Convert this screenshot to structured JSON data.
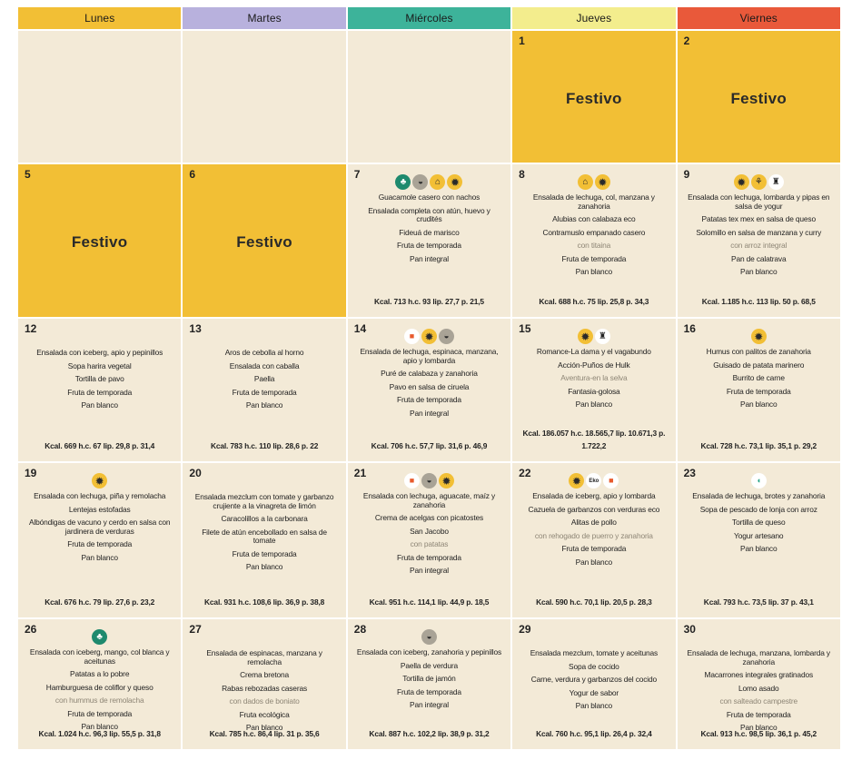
{
  "headers": [
    {
      "label": "Lunes",
      "color": "#f2bf35"
    },
    {
      "label": "Martes",
      "color": "#b8b1dd"
    },
    {
      "label": "Miércoles",
      "color": "#3db39a"
    },
    {
      "label": "Jueves",
      "color": "#f3ed8d"
    },
    {
      "label": "Viernes",
      "color": "#e9593a"
    }
  ],
  "holiday_label": "Festivo",
  "weeks": [
    [
      {
        "empty": true
      },
      {
        "empty": true
      },
      {
        "empty": true
      },
      {
        "day": "1",
        "holiday": true
      },
      {
        "day": "2",
        "holiday": true
      }
    ],
    [
      {
        "day": "5",
        "holiday": true
      },
      {
        "day": "6",
        "holiday": true
      },
      {
        "day": "7",
        "icons": [
          "tree",
          "bowl",
          "house",
          "sun"
        ],
        "menu": [
          {
            "text": "Guacamole casero con nachos"
          },
          {
            "text": "Ensalada completa con atún, huevo y crudités"
          },
          {
            "text": "Fideuá de marisco"
          },
          {
            "text": "Fruta de temporada"
          },
          {
            "text": "Pan integral"
          }
        ],
        "kcal": "Kcal. 713 h.c. 93 lip. 27,7 p. 21,5"
      },
      {
        "day": "8",
        "icons": [
          "house",
          "sun"
        ],
        "menu": [
          {
            "text": "Ensalada de lechuga, col, manzana y zanahoria"
          },
          {
            "text": "Alubias con calabaza eco"
          },
          {
            "text": "Contramuslo empanado casero"
          },
          {
            "text": "con titaina",
            "alt": true
          },
          {
            "text": "Fruta de temporada"
          },
          {
            "text": "Pan blanco"
          }
        ],
        "kcal": "Kcal. 688 h.c. 75 lip. 25,8 p. 34,3"
      },
      {
        "day": "9",
        "icons": [
          "sun",
          "sprout",
          "chef"
        ],
        "menu": [
          {
            "text": "Ensalada con lechuga, lombarda y pipas en salsa de yogur"
          },
          {
            "text": "Patatas tex mex en salsa de queso"
          },
          {
            "text": "Solomillo en salsa de manzana y curry"
          },
          {
            "text": "con arroz integral",
            "alt": true
          },
          {
            "text": "Pan de calatrava"
          },
          {
            "text": "Pan blanco"
          }
        ],
        "kcal": "Kcal. 1.185 h.c. 113 lip. 50 p. 68,5"
      }
    ],
    [
      {
        "day": "12",
        "icons": [],
        "menu": [
          {
            "text": "Ensalada con iceberg, apio y pepinillos"
          },
          {
            "text": "Sopa harira vegetal"
          },
          {
            "text": "Tortilla de pavo"
          },
          {
            "text": "Fruta de temporada"
          },
          {
            "text": "Pan blanco"
          }
        ],
        "kcal": "Kcal. 669 h.c. 67 lip. 29,8 p. 31,4"
      },
      {
        "day": "13",
        "icons": [],
        "menu": [
          {
            "text": "Aros de cebolla al horno"
          },
          {
            "text": "Ensalada con caballa"
          },
          {
            "text": "Paella"
          },
          {
            "text": "Fruta de temporada"
          },
          {
            "text": "Pan blanco"
          }
        ],
        "kcal": "Kcal. 783 h.c. 110 lip. 28,6 p. 22"
      },
      {
        "day": "14",
        "icons": [
          "flag",
          "sun",
          "bowl"
        ],
        "menu": [
          {
            "text": "Ensalada de lechuga, espinaca, manzana, apio y lombarda"
          },
          {
            "text": "Puré de calabaza y zanahoria"
          },
          {
            "text": "Pavo en salsa de ciruela"
          },
          {
            "text": "Fruta de temporada"
          },
          {
            "text": "Pan integral"
          }
        ],
        "kcal": "Kcal. 706 h.c. 57,7 lip. 31,6 p. 46,9"
      },
      {
        "day": "15",
        "icons": [
          "sun",
          "chef"
        ],
        "menu": [
          {
            "text": "Romance-La dama y el vagabundo"
          },
          {
            "text": "Acción-Puños de Hulk"
          },
          {
            "text": "Aventura-en la selva",
            "alt": true
          },
          {
            "text": "Fantasia-golosa"
          },
          {
            "text": "Pan blanco"
          }
        ],
        "kcal": "Kcal. 186.057 h.c. 18.565,7 lip. 10.671,3 p. 1.722,2"
      },
      {
        "day": "16",
        "icons": [
          "sun"
        ],
        "menu": [
          {
            "text": "Humus con palitos de zanahoria"
          },
          {
            "text": "Guisado de patata marinero"
          },
          {
            "text": "Burrito de carne"
          },
          {
            "text": "Fruta de temporada"
          },
          {
            "text": "Pan blanco"
          }
        ],
        "kcal": "Kcal. 728 h.c. 73,1 lip. 35,1 p. 29,2"
      }
    ],
    [
      {
        "day": "19",
        "icons": [
          "sun"
        ],
        "menu": [
          {
            "text": "Ensalada con lechuga, piña y remolacha"
          },
          {
            "text": "Lentejas estofadas"
          },
          {
            "text": "Albóndigas de vacuno y cerdo en salsa con jardinera de verduras"
          },
          {
            "text": "Fruta de temporada"
          },
          {
            "text": "Pan blanco"
          }
        ],
        "kcal": "Kcal. 676 h.c. 79 lip. 27,6 p. 23,2"
      },
      {
        "day": "20",
        "icons": [],
        "menu": [
          {
            "text": "Ensalada mezclum con tomate y garbanzo crujiente a la vinagreta de limón"
          },
          {
            "text": "Caracolillos a la carbonara"
          },
          {
            "text": "Filete de atún encebollado en salsa de tomate"
          },
          {
            "text": "Fruta de temporada"
          },
          {
            "text": "Pan blanco"
          }
        ],
        "kcal": "Kcal. 931 h.c. 108,6 lip. 36,9 p. 38,8"
      },
      {
        "day": "21",
        "icons": [
          "flag",
          "bowl",
          "sun"
        ],
        "menu": [
          {
            "text": "Ensalada con lechuga, aguacate, maíz y zanahoria"
          },
          {
            "text": "Crema de acelgas con picatostes"
          },
          {
            "text": "San Jacobo"
          },
          {
            "text": "con patatas",
            "alt": true
          },
          {
            "text": "Fruta de temporada"
          },
          {
            "text": "Pan integral"
          }
        ],
        "kcal": "Kcal. 951 h.c. 114,1 lip. 44,9 p. 18,5"
      },
      {
        "day": "22",
        "icons": [
          "sun",
          "eko",
          "flag"
        ],
        "menu": [
          {
            "text": "Ensalada de iceberg, apio y lombarda"
          },
          {
            "text": "Cazuela de garbanzos con verduras eco"
          },
          {
            "text": "Alitas de pollo"
          },
          {
            "text": "con rehogado de puerro y zanahoria",
            "alt": true
          },
          {
            "text": "Fruta de temporada"
          },
          {
            "text": "Pan blanco"
          }
        ],
        "kcal": "Kcal. 590 h.c. 70,1 lip. 20,5 p. 28,3"
      },
      {
        "day": "23",
        "icons": [
          "fish"
        ],
        "menu": [
          {
            "text": "Ensalada de lechuga, brotes y zanahoria"
          },
          {
            "text": "Sopa de pescado de lonja con arroz"
          },
          {
            "text": "Tortilla de queso"
          },
          {
            "text": "Yogur artesano"
          },
          {
            "text": "Pan blanco"
          }
        ],
        "kcal": "Kcal. 793 h.c. 73,5 lip. 37 p. 43,1"
      }
    ],
    [
      {
        "day": "26",
        "icons": [
          "tree"
        ],
        "menu": [
          {
            "text": "Ensalada con iceberg, mango, col blanca y aceitunas"
          },
          {
            "text": "Patatas a lo pobre"
          },
          {
            "text": "Hamburguesa de coliflor y queso"
          },
          {
            "text": "con hummus de remolacha",
            "alt": true
          },
          {
            "text": "Fruta de temporada"
          },
          {
            "text": "Pan blanco"
          }
        ],
        "kcal": "Kcal. 1.024 h.c. 96,3 lip. 55,5 p. 31,8"
      },
      {
        "day": "27",
        "icons": [],
        "menu": [
          {
            "text": "Ensalada de espinacas, manzana y remolacha"
          },
          {
            "text": "Crema bretona"
          },
          {
            "text": "Rabas rebozadas caseras"
          },
          {
            "text": "con dados de boniato",
            "alt": true
          },
          {
            "text": "Fruta ecológica"
          },
          {
            "text": "Pan blanco"
          }
        ],
        "kcal": "Kcal. 785 h.c. 86,4 lip. 31 p. 35,6"
      },
      {
        "day": "28",
        "icons": [
          "bowl"
        ],
        "menu": [
          {
            "text": "Ensalada con iceberg, zanahoria y pepinillos"
          },
          {
            "text": "Paella de verdura"
          },
          {
            "text": "Tortilla de jamón"
          },
          {
            "text": "Fruta de temporada"
          },
          {
            "text": "Pan integral"
          }
        ],
        "kcal": "Kcal. 887 h.c. 102,2 lip. 38,9 p. 31,2"
      },
      {
        "day": "29",
        "icons": [],
        "menu": [
          {
            "text": "Ensalada mezclum, tomate y aceitunas"
          },
          {
            "text": "Sopa de cocido"
          },
          {
            "text": "Carne, verdura y garbanzos del cocido"
          },
          {
            "text": "Yogur de sabor"
          },
          {
            "text": "Pan blanco"
          }
        ],
        "kcal": "Kcal. 760 h.c. 95,1 lip. 26,4 p. 32,4"
      },
      {
        "day": "30",
        "icons": [],
        "menu": [
          {
            "text": "Ensalada de lechuga, manzana, lombarda y zanahoria"
          },
          {
            "text": "Macarrones integrales gratinados"
          },
          {
            "text": "Lomo asado"
          },
          {
            "text": "con salteado campestre",
            "alt": true
          },
          {
            "text": "Fruta de temporada"
          },
          {
            "text": "Pan blanco"
          }
        ],
        "kcal": "Kcal. 913 h.c. 98,5 lip. 36,1 p. 45,2"
      }
    ]
  ]
}
